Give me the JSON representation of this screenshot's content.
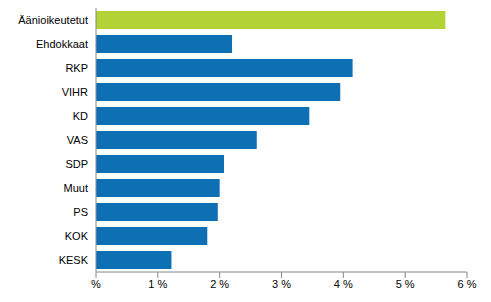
{
  "chart_data": {
    "type": "bar",
    "orientation": "horizontal",
    "categories": [
      "Äänioikeutetut",
      "Ehdokkaat",
      "RKP",
      "VIHR",
      "KD",
      "VAS",
      "SDP",
      "Muut",
      "PS",
      "KOK",
      "KESK"
    ],
    "values": [
      5.65,
      2.2,
      4.15,
      3.95,
      3.45,
      2.6,
      2.07,
      2.0,
      1.97,
      1.8,
      1.22
    ],
    "colors": [
      "#b2d235",
      "#0f6fb4",
      "#0f6fb4",
      "#0f6fb4",
      "#0f6fb4",
      "#0f6fb4",
      "#0f6fb4",
      "#0f6fb4",
      "#0f6fb4",
      "#0f6fb4",
      "#0f6fb4"
    ],
    "xlim": [
      0,
      6
    ],
    "xticks": [
      {
        "value": 0,
        "label": "%"
      },
      {
        "value": 1,
        "label": "1 %"
      },
      {
        "value": 2,
        "label": "2 %"
      },
      {
        "value": 3,
        "label": "3 %"
      },
      {
        "value": 4,
        "label": "4 %"
      },
      {
        "value": 5,
        "label": "5 %"
      },
      {
        "value": 6,
        "label": "6 %"
      }
    ],
    "grid": false
  }
}
